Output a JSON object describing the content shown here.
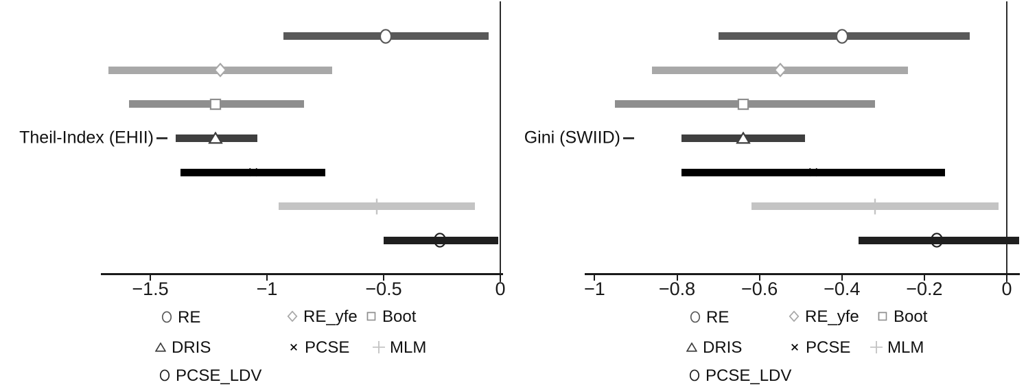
{
  "figure": {
    "background": "#ffffff",
    "axis_color": "#1a1a1a",
    "zero_line_color": "#2b2b2b",
    "text_color": "#111111"
  },
  "chart_data": [
    {
      "type": "scatter",
      "subtype": "coefficient-interval-plot",
      "panel_label": "Theil-Index (EHII)",
      "xlabel": "",
      "ylabel": "",
      "xlim": [
        -1.712,
        0.012
      ],
      "grid": false,
      "zero_reference_line": 0,
      "xticks": [
        -1.5,
        -1,
        -0.5,
        0
      ],
      "xtick_labels": [
        "−1.5",
        "−1",
        "−0.5",
        "0"
      ],
      "series": [
        {
          "name": "RE",
          "marker": "circle",
          "color": "#595959",
          "estimate": -0.49,
          "ci_low": -0.93,
          "ci_high": -0.05
        },
        {
          "name": "RE_yfe",
          "marker": "diamond",
          "color": "#a8a8a8",
          "estimate": -1.2,
          "ci_low": -1.68,
          "ci_high": -0.72
        },
        {
          "name": "Boot",
          "marker": "square",
          "color": "#8e8e8e",
          "estimate": -1.22,
          "ci_low": -1.59,
          "ci_high": -0.84
        },
        {
          "name": "DRIS",
          "marker": "triangle",
          "color": "#3f3f3f",
          "estimate": -1.22,
          "ci_low": -1.39,
          "ci_high": -1.04
        },
        {
          "name": "PCSE",
          "marker": "x",
          "color": "#000000",
          "estimate": -1.06,
          "ci_low": -1.37,
          "ci_high": -0.75
        },
        {
          "name": "MLM",
          "marker": "plus",
          "color": "#c4c4c4",
          "estimate": -0.53,
          "ci_low": -0.95,
          "ci_high": -0.11
        },
        {
          "name": "PCSE_LDV",
          "marker": "circle-open",
          "color": "#1f1f1f",
          "estimate": -0.26,
          "ci_low": -0.5,
          "ci_high": -0.01
        }
      ],
      "legend_rows": [
        [
          "RE",
          "RE_yfe",
          "Boot"
        ],
        [
          "DRIS",
          "PCSE",
          "MLM"
        ],
        [
          "PCSE_LDV"
        ]
      ],
      "legend_position": "below"
    },
    {
      "type": "scatter",
      "subtype": "coefficient-interval-plot",
      "panel_label": "Gini (SWIID)",
      "xlabel": "",
      "ylabel": "",
      "xlim": [
        -1.023,
        0.032
      ],
      "grid": false,
      "zero_reference_line": 0,
      "xticks": [
        -1,
        -0.8,
        -0.6,
        -0.4,
        -0.2,
        0
      ],
      "xtick_labels": [
        "−1",
        "−0.8",
        "−0.6",
        "−0.4",
        "−0.2",
        "0"
      ],
      "series": [
        {
          "name": "RE",
          "marker": "circle",
          "color": "#595959",
          "estimate": -0.4,
          "ci_low": -0.7,
          "ci_high": -0.09
        },
        {
          "name": "RE_yfe",
          "marker": "diamond",
          "color": "#a8a8a8",
          "estimate": -0.55,
          "ci_low": -0.86,
          "ci_high": -0.24
        },
        {
          "name": "Boot",
          "marker": "square",
          "color": "#8e8e8e",
          "estimate": -0.64,
          "ci_low": -0.95,
          "ci_high": -0.32
        },
        {
          "name": "DRIS",
          "marker": "triangle",
          "color": "#3f3f3f",
          "estimate": -0.64,
          "ci_low": -0.79,
          "ci_high": -0.49
        },
        {
          "name": "PCSE",
          "marker": "x",
          "color": "#000000",
          "estimate": -0.47,
          "ci_low": -0.79,
          "ci_high": -0.15
        },
        {
          "name": "MLM",
          "marker": "plus",
          "color": "#c4c4c4",
          "estimate": -0.32,
          "ci_low": -0.62,
          "ci_high": -0.02
        },
        {
          "name": "PCSE_LDV",
          "marker": "circle-open",
          "color": "#1f1f1f",
          "estimate": -0.17,
          "ci_low": -0.36,
          "ci_high": 0.03
        }
      ],
      "legend_rows": [
        [
          "RE",
          "RE_yfe",
          "Boot"
        ],
        [
          "DRIS",
          "PCSE",
          "MLM"
        ],
        [
          "PCSE_LDV"
        ]
      ],
      "legend_position": "below"
    }
  ]
}
